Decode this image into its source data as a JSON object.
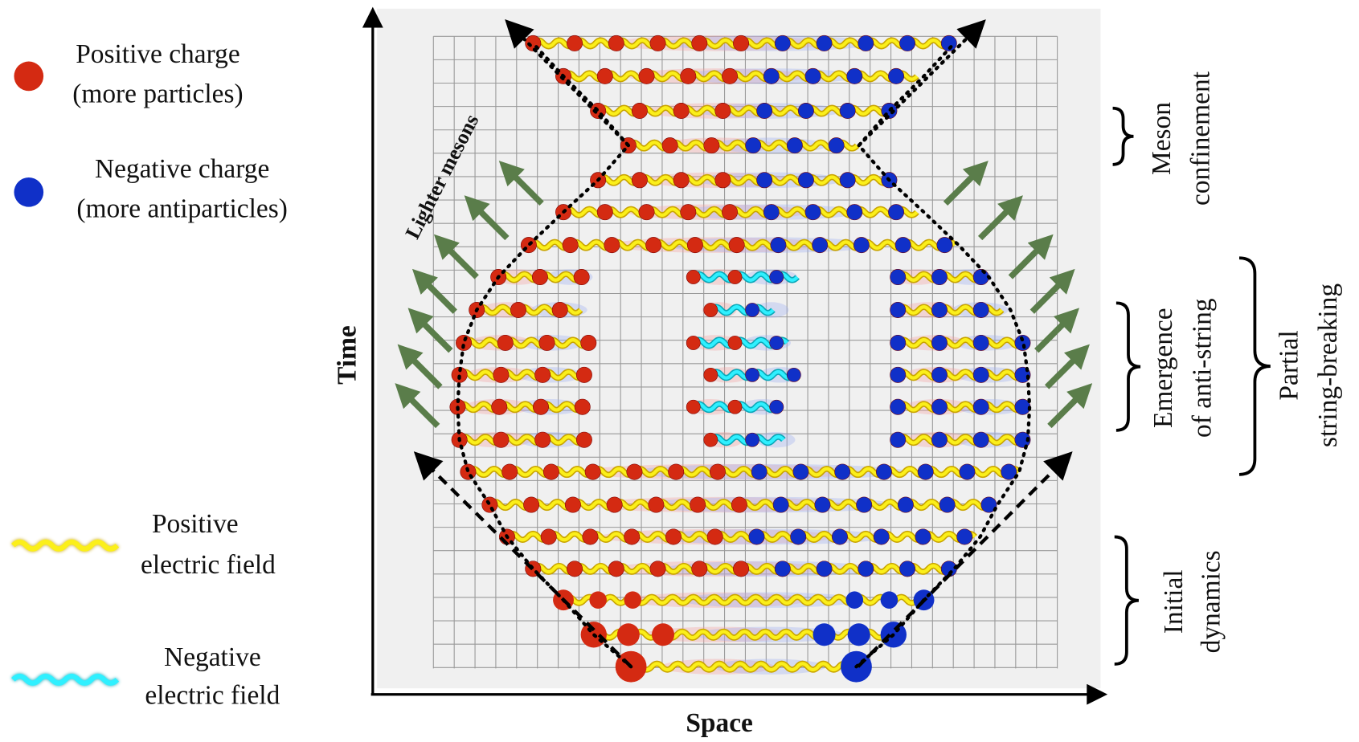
{
  "legend": [
    {
      "lines": [
        "Positive charge",
        "(more particles)"
      ]
    },
    {
      "lines": [
        "Negative charge",
        "(more antiparticles)"
      ]
    },
    {
      "lines": [
        "Positive",
        "electric field"
      ]
    },
    {
      "lines": [
        "Negative",
        "electric field"
      ]
    }
  ],
  "axes": {
    "y_label": "Time",
    "x_label": "Space"
  },
  "annotation": "Lighter mesons",
  "phases": [
    {
      "lines": [
        "Meson",
        "confinement"
      ]
    },
    {
      "lines": [
        "Emergence",
        "of anti-string"
      ]
    },
    {
      "lines": [
        "Partial",
        "string-breaking"
      ]
    },
    {
      "lines": [
        "Initial",
        "dynamics"
      ]
    }
  ]
}
